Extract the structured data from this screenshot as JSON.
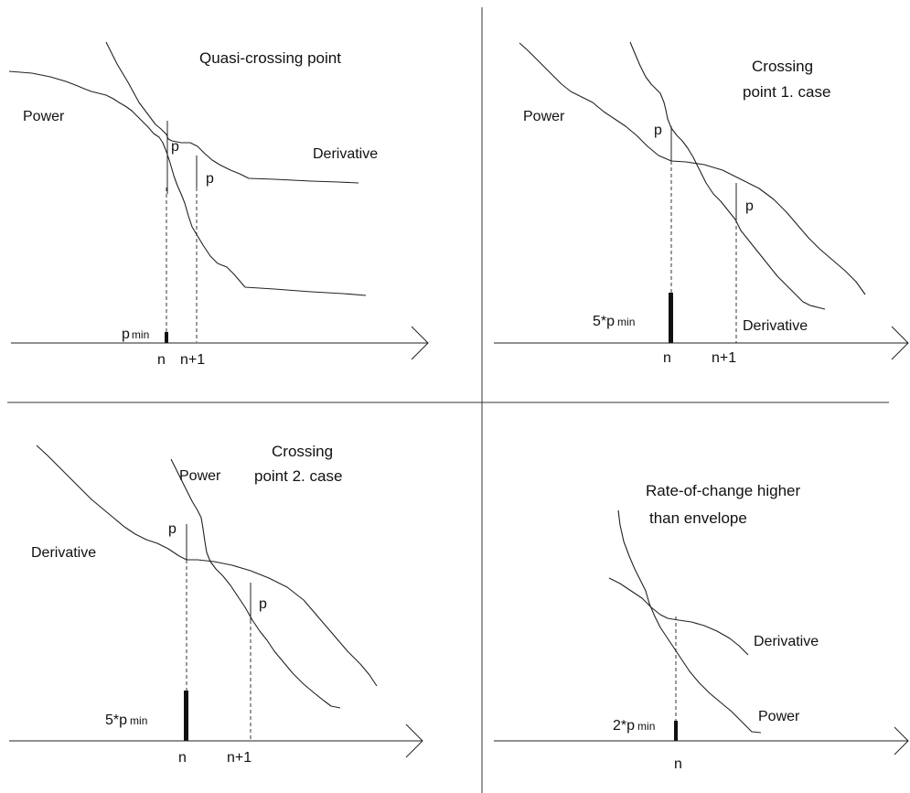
{
  "panels": [
    {
      "title_lines": [
        "Quasi-crossing point"
      ],
      "curve_labels": [
        "Power",
        "Derivative"
      ],
      "marker_labels": [
        "p",
        "p"
      ],
      "bar_label": "p",
      "bar_label_sub": "min",
      "axis_labels": [
        "n",
        "n+1"
      ]
    },
    {
      "title_lines": [
        "Crossing",
        "point 1. case"
      ],
      "curve_labels": [
        "Power",
        "Derivative"
      ],
      "marker_labels": [
        "p",
        "p"
      ],
      "bar_label": "5*p",
      "bar_label_sub": "min",
      "axis_labels": [
        "n",
        "n+1"
      ]
    },
    {
      "title_lines": [
        "Crossing",
        "point 2. case"
      ],
      "curve_labels": [
        "Power",
        "Derivative"
      ],
      "marker_labels": [
        "p",
        "p"
      ],
      "bar_label": "5*p",
      "bar_label_sub": "min",
      "axis_labels": [
        "n",
        "n+1"
      ]
    },
    {
      "title_lines": [
        "Rate-of-change higher",
        " than envelope"
      ],
      "curve_labels": [
        "Derivative",
        "Power"
      ],
      "bar_label": "2*p",
      "bar_label_sub": "min",
      "axis_labels": [
        "n"
      ]
    }
  ]
}
